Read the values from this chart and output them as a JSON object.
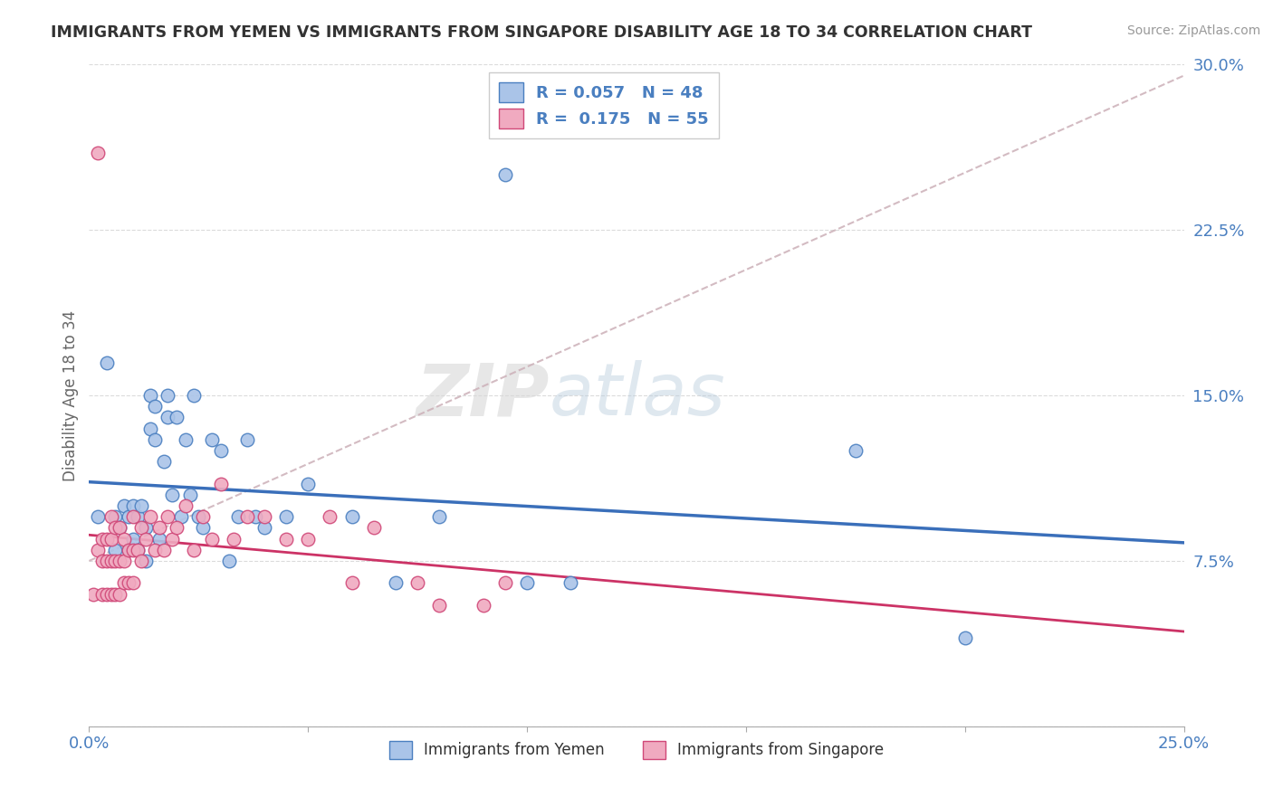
{
  "title": "IMMIGRANTS FROM YEMEN VS IMMIGRANTS FROM SINGAPORE DISABILITY AGE 18 TO 34 CORRELATION CHART",
  "source": "Source: ZipAtlas.com",
  "ylabel": "Disability Age 18 to 34",
  "xlim": [
    0.0,
    0.25
  ],
  "ylim": [
    0.0,
    0.3
  ],
  "xtick_positions": [
    0.0,
    0.05,
    0.1,
    0.15,
    0.2,
    0.25
  ],
  "xtick_labels": [
    "0.0%",
    "",
    "",
    "",
    "",
    "25.0%"
  ],
  "ytick_positions": [
    0.0,
    0.075,
    0.15,
    0.225,
    0.3
  ],
  "ytick_labels": [
    "",
    "7.5%",
    "15.0%",
    "22.5%",
    "30.0%"
  ],
  "legend_label_1": "Immigrants from Yemen",
  "legend_label_2": "Immigrants from Singapore",
  "r1": "0.057",
  "n1": "48",
  "r2": "0.175",
  "n2": "55",
  "color1": "#aac4e8",
  "color2": "#f0aac0",
  "edge1": "#4a7fc0",
  "edge2": "#d04878",
  "line1_color": "#3a6fba",
  "line2_color": "#cc3366",
  "dash_color": "#ccb0b8",
  "background_color": "#ffffff",
  "watermark_zip": "ZIP",
  "watermark_atlas": "atlas",
  "yemen_x": [
    0.002,
    0.004,
    0.006,
    0.006,
    0.007,
    0.008,
    0.009,
    0.009,
    0.01,
    0.01,
    0.011,
    0.011,
    0.012,
    0.013,
    0.013,
    0.014,
    0.014,
    0.015,
    0.015,
    0.016,
    0.017,
    0.018,
    0.018,
    0.019,
    0.02,
    0.021,
    0.022,
    0.023,
    0.024,
    0.025,
    0.026,
    0.028,
    0.03,
    0.032,
    0.034,
    0.036,
    0.038,
    0.04,
    0.045,
    0.05,
    0.06,
    0.07,
    0.08,
    0.095,
    0.1,
    0.11,
    0.175,
    0.2
  ],
  "yemen_y": [
    0.095,
    0.165,
    0.095,
    0.08,
    0.09,
    0.1,
    0.095,
    0.08,
    0.1,
    0.085,
    0.095,
    0.08,
    0.1,
    0.09,
    0.075,
    0.15,
    0.135,
    0.145,
    0.13,
    0.085,
    0.12,
    0.15,
    0.14,
    0.105,
    0.14,
    0.095,
    0.13,
    0.105,
    0.15,
    0.095,
    0.09,
    0.13,
    0.125,
    0.075,
    0.095,
    0.13,
    0.095,
    0.09,
    0.095,
    0.11,
    0.095,
    0.065,
    0.095,
    0.25,
    0.065,
    0.065,
    0.125,
    0.04
  ],
  "singapore_x": [
    0.001,
    0.002,
    0.002,
    0.003,
    0.003,
    0.003,
    0.004,
    0.004,
    0.004,
    0.005,
    0.005,
    0.005,
    0.005,
    0.006,
    0.006,
    0.006,
    0.007,
    0.007,
    0.007,
    0.008,
    0.008,
    0.008,
    0.009,
    0.009,
    0.01,
    0.01,
    0.01,
    0.011,
    0.012,
    0.012,
    0.013,
    0.014,
    0.015,
    0.016,
    0.017,
    0.018,
    0.019,
    0.02,
    0.022,
    0.024,
    0.026,
    0.028,
    0.03,
    0.033,
    0.036,
    0.04,
    0.045,
    0.05,
    0.055,
    0.06,
    0.065,
    0.075,
    0.08,
    0.09,
    0.095
  ],
  "singapore_y": [
    0.06,
    0.26,
    0.08,
    0.06,
    0.075,
    0.085,
    0.06,
    0.075,
    0.085,
    0.06,
    0.075,
    0.085,
    0.095,
    0.06,
    0.075,
    0.09,
    0.06,
    0.075,
    0.09,
    0.065,
    0.075,
    0.085,
    0.065,
    0.08,
    0.065,
    0.08,
    0.095,
    0.08,
    0.075,
    0.09,
    0.085,
    0.095,
    0.08,
    0.09,
    0.08,
    0.095,
    0.085,
    0.09,
    0.1,
    0.08,
    0.095,
    0.085,
    0.11,
    0.085,
    0.095,
    0.095,
    0.085,
    0.085,
    0.095,
    0.065,
    0.09,
    0.065,
    0.055,
    0.055,
    0.065
  ]
}
